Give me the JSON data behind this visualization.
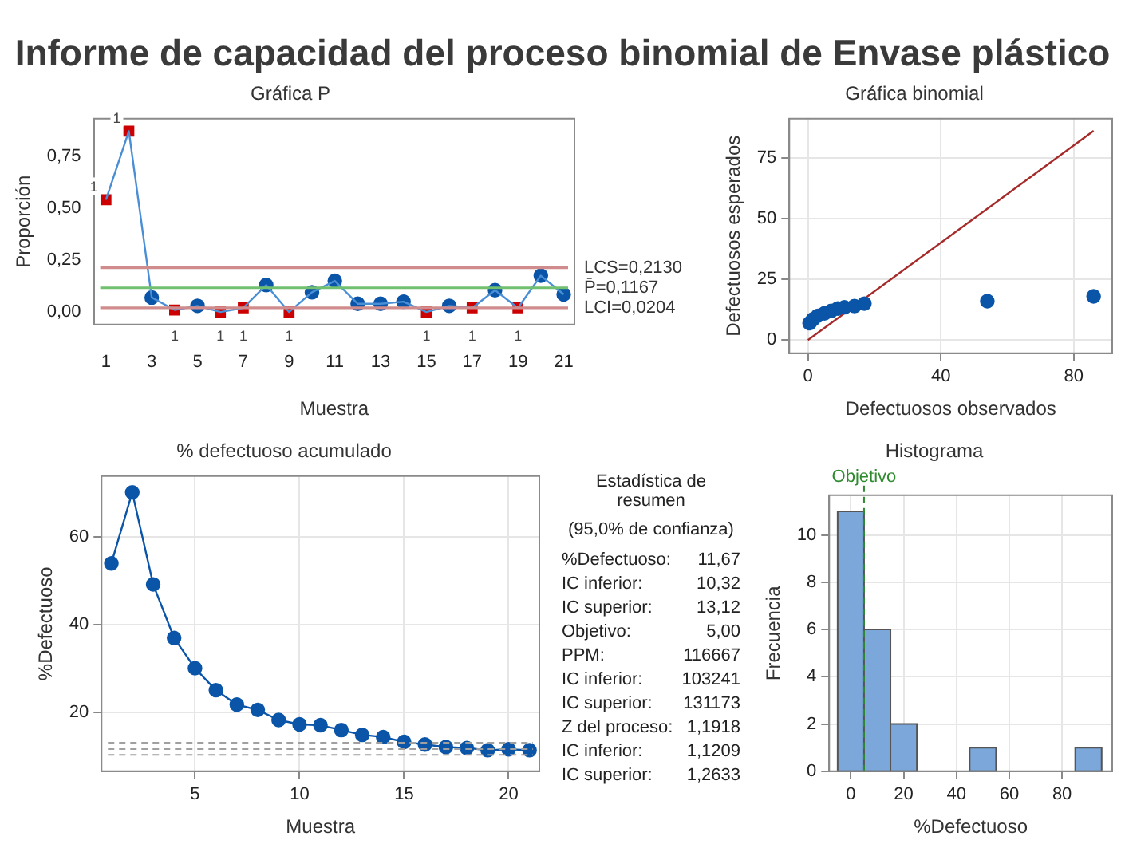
{
  "chart_data": [
    {
      "type": "line",
      "title": "Informe de capacidad del proceso binomial de Envase plástico",
      "subtitle": "Gráfica P",
      "xlabel": "Muestra",
      "ylabel": "Proporción",
      "grid": false,
      "legend": false,
      "x": [
        1,
        2,
        3,
        4,
        5,
        6,
        7,
        8,
        9,
        10,
        11,
        12,
        13,
        14,
        15,
        16,
        17,
        18,
        19,
        20,
        21
      ],
      "xlim": [
        0.47,
        21.47
      ],
      "xticks": [
        1,
        3,
        5,
        7,
        9,
        11,
        13,
        15,
        17,
        19,
        21
      ],
      "ylim": [
        -0.06,
        0.93
      ],
      "yticks": [
        {
          "value": 0,
          "label": "0,00"
        },
        {
          "value": 0.25,
          "label": "0,25"
        },
        {
          "value": 0.5,
          "label": "0,50"
        },
        {
          "value": 0.75,
          "label": "0,75"
        }
      ],
      "series": [
        {
          "type": "line",
          "color": "#4a8fd6",
          "marker": "none",
          "values": [
            0.54,
            0.87,
            0.07,
            0.01,
            0.03,
            0,
            0.02,
            0.13,
            0,
            0.095,
            0.15,
            0.04,
            0.04,
            0.05,
            0,
            0.03,
            0.02,
            0.105,
            0.02,
            0.175,
            0.085
          ]
        },
        {
          "type": "scatter",
          "color": "#0a55a8",
          "marker": "circle",
          "values": [
            null,
            null,
            0.07,
            null,
            0.03,
            null,
            null,
            0.13,
            null,
            0.095,
            0.15,
            0.04,
            0.04,
            0.05,
            null,
            0.03,
            null,
            0.105,
            null,
            0.175,
            0.085
          ]
        },
        {
          "type": "scatter",
          "color": "#cc0000",
          "marker": "square",
          "values": [
            0.54,
            0.87,
            null,
            0.01,
            null,
            0,
            0.02,
            null,
            0,
            null,
            null,
            null,
            null,
            null,
            0,
            null,
            0.02,
            null,
            0.02,
            null,
            null
          ]
        }
      ],
      "ref_lines": [
        {
          "axis": "y",
          "value": 0.213,
          "label": "LCS=0,2130",
          "color": "#d08c8c"
        },
        {
          "axis": "y",
          "value": 0.1167,
          "label": "P̄=0,1167",
          "color": "#70c070"
        },
        {
          "axis": "y",
          "value": 0.0204,
          "label": "LCI=0,0204",
          "color": "#d08c8c"
        }
      ],
      "annotations": [
        {
          "text": "1",
          "x": 1,
          "y": 0.54
        },
        {
          "text": "1",
          "x": 2,
          "y": 0.87
        },
        {
          "text": "1",
          "x": 4,
          "y": 0.01
        },
        {
          "text": "1",
          "x": 6,
          "y": 0
        },
        {
          "text": "1",
          "x": 7,
          "y": 0.02
        },
        {
          "text": "1",
          "x": 9,
          "y": 0
        },
        {
          "text": "1",
          "x": 15,
          "y": 0
        },
        {
          "text": "1",
          "x": 17,
          "y": 0.02
        },
        {
          "text": "1",
          "x": 19,
          "y": 0.02
        }
      ]
    },
    {
      "type": "scatter",
      "title": "Gráfica binomial",
      "xlabel": "Defectuosos observados",
      "ylabel": "Defectuosos esperados",
      "grid": true,
      "legend": false,
      "xlim": [
        -5.6,
        91.6
      ],
      "xticks": [
        0,
        40,
        80
      ],
      "ylim": [
        -5.4,
        91
      ],
      "yticks": [
        0,
        25,
        50,
        75
      ],
      "series": [
        {
          "type": "scatter",
          "color": "#0a55a8",
          "marker": "circle",
          "x": [
            0.5,
            1.5,
            3,
            5,
            7,
            9,
            11,
            14,
            17,
            54,
            86
          ],
          "values": [
            7,
            8.5,
            10,
            11,
            12,
            13,
            13.5,
            14,
            15,
            16,
            18
          ]
        },
        {
          "type": "line",
          "color": "#a52a2a",
          "marker": "none",
          "x": [
            0,
            86
          ],
          "values": [
            0,
            86
          ]
        }
      ]
    },
    {
      "type": "line",
      "title": "% defectuoso acumulado",
      "xlabel": "Muestra",
      "ylabel": "%Defectuoso",
      "grid": true,
      "legend": false,
      "x": [
        1,
        2,
        3,
        4,
        5,
        6,
        7,
        8,
        9,
        10,
        11,
        12,
        13,
        14,
        15,
        16,
        17,
        18,
        19,
        20,
        21
      ],
      "xlim": [
        0.53,
        21.47
      ],
      "xticks": [
        5,
        10,
        15,
        20
      ],
      "ylim": [
        6.6,
        73.9
      ],
      "yticks": [
        20,
        40,
        60
      ],
      "series": [
        {
          "type": "line",
          "color": "#0a55a8",
          "marker": "circle",
          "values": [
            54,
            70.2,
            49.2,
            37,
            30.1,
            25.1,
            21.8,
            20.6,
            18.3,
            17.3,
            17.1,
            16,
            14.9,
            14.4,
            13.3,
            12.7,
            12.1,
            11.9,
            11.4,
            11.6,
            11.4
          ]
        }
      ],
      "ref_lines": [
        {
          "axis": "y",
          "value": 13.12,
          "color": "#a0a0a0",
          "line_style": "dashed"
        },
        {
          "axis": "y",
          "value": 11.67,
          "color": "#a0a0a0",
          "line_style": "dashed"
        },
        {
          "axis": "y",
          "value": 10.32,
          "color": "#a0a0a0",
          "line_style": "dashed"
        }
      ]
    },
    {
      "type": "other",
      "title": "Estadística de resumen",
      "subtitle": "(95,0% de confianza)",
      "annotations": [
        "%Defectuoso:",
        "11,67",
        "IC inferior:",
        "10,32",
        "IC superior:",
        "13,12",
        "Objetivo:",
        "5,00",
        "PPM:",
        "116667",
        "IC inferior:",
        "103241",
        "IC superior:",
        "131173",
        "Z del proceso:",
        "1,1918",
        "IC inferior:",
        "1,1209",
        "IC superior:",
        "1,2633"
      ]
    },
    {
      "type": "histogram",
      "title": "Histograma",
      "xlabel": "%Defectuoso",
      "ylabel": "Frecuencia",
      "grid": true,
      "legend": false,
      "color": "#7ba7db",
      "bins": [
        -5,
        5,
        15,
        25,
        35,
        45,
        55,
        65,
        75,
        85,
        95
      ],
      "values": [
        11,
        6,
        2,
        0,
        0,
        1,
        0,
        0,
        0,
        1
      ],
      "xlim": [
        -8.2,
        99
      ],
      "xticks": [
        0,
        20,
        40,
        60,
        80
      ],
      "ylim": [
        0,
        11.68
      ],
      "yticks": [
        0,
        2,
        4,
        6,
        8,
        10
      ],
      "ref_lines": [
        {
          "axis": "x",
          "value": 5,
          "label": "Objetivo",
          "color": "#2e8b2e",
          "line_style": "dashed"
        }
      ]
    }
  ]
}
